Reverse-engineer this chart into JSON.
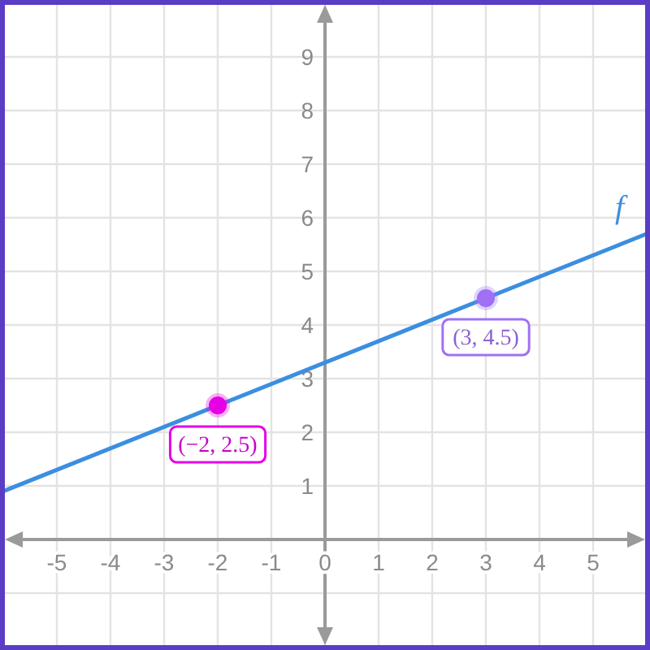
{
  "chart_data": {
    "type": "line",
    "xlim": [
      -6,
      6
    ],
    "ylim": [
      -2,
      10
    ],
    "xticks": [
      -5,
      -4,
      -3,
      -2,
      -1,
      0,
      1,
      2,
      3,
      4,
      5
    ],
    "yticks": [
      {
        "value": -1,
        "label": null
      },
      1,
      2,
      3,
      4,
      5,
      6,
      7,
      8,
      9
    ],
    "grid": true,
    "series": [
      {
        "name": "f",
        "type": "line",
        "color": "#3b8ee0",
        "x": [
          -6,
          -2,
          3,
          6
        ],
        "values": [
          0.9,
          2.5,
          4.5,
          5.7
        ],
        "marker": "none"
      },
      {
        "type": "scatter",
        "color": "#e600e6",
        "x": [
          -2
        ],
        "values": [
          2.5
        ],
        "marker": "circle"
      },
      {
        "type": "scatter",
        "color": "#a070f5",
        "x": [
          3
        ],
        "values": [
          4.5
        ],
        "marker": "circle"
      }
    ],
    "annotations": [
      {
        "text": "(−2, 2.5)",
        "x": -2,
        "y": 2.5
      },
      {
        "text": "(3, 4.5)",
        "x": 3,
        "y": 4.5
      }
    ]
  }
}
